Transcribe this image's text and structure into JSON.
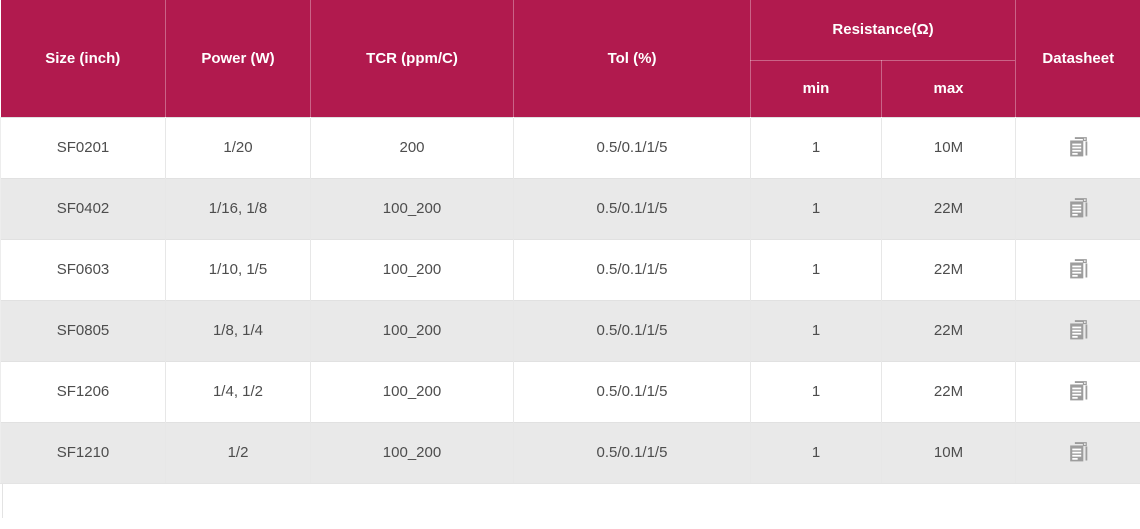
{
  "colors": {
    "header_bg": "#b11a4e",
    "header_text": "#ffffff",
    "header_divider": "rgba(255,255,255,0.32)",
    "row_alt_bg": "#e9e9e9",
    "row_text": "#4d4d4d",
    "row_border": "#e1e1e1",
    "icon_gray": "#9d9d9d"
  },
  "table": {
    "header": {
      "size": "Size (inch)",
      "power": "Power (W)",
      "tcr": "TCR (ppm/C)",
      "tol": "Tol (%)",
      "resistance": "Resistance(Ω)",
      "min": "min",
      "max": "max",
      "datasheet": "Datasheet"
    },
    "datasheet_icon": "document-copy-icon",
    "rows": [
      {
        "size": "SF0201",
        "power": "1/20",
        "tcr": "200",
        "tol": "0.5/0.1/1/5",
        "min": "1",
        "max": "10M"
      },
      {
        "size": "SF0402",
        "power": "1/16, 1/8",
        "tcr": "100_200",
        "tol": "0.5/0.1/1/5",
        "min": "1",
        "max": "22M"
      },
      {
        "size": "SF0603",
        "power": "1/10, 1/5",
        "tcr": "100_200",
        "tol": "0.5/0.1/1/5",
        "min": "1",
        "max": "22M"
      },
      {
        "size": "SF0805",
        "power": "1/8, 1/4",
        "tcr": "100_200",
        "tol": "0.5/0.1/1/5",
        "min": "1",
        "max": "22M"
      },
      {
        "size": "SF1206",
        "power": "1/4, 1/2",
        "tcr": "100_200",
        "tol": "0.5/0.1/1/5",
        "min": "1",
        "max": "22M"
      },
      {
        "size": "SF1210",
        "power": "1/2",
        "tcr": "100_200",
        "tol": "0.5/0.1/1/5",
        "min": "1",
        "max": "10M"
      }
    ]
  }
}
